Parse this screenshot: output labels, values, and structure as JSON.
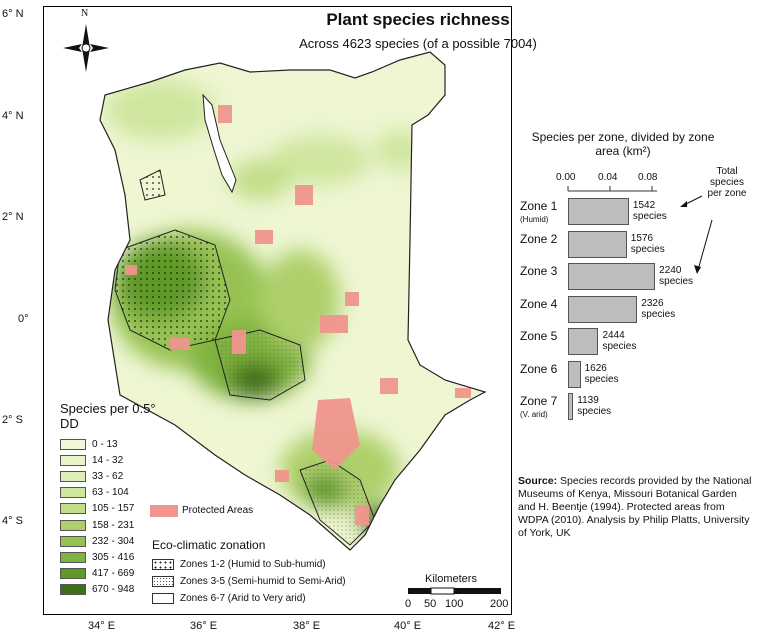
{
  "title": "Plant species richness",
  "subtitle": "Across 4623 species (of a possible 7004)",
  "compass_label": "N",
  "lat_labels": [
    "6° N",
    "4° N",
    "2° N",
    "0°",
    "2° S",
    "4° S"
  ],
  "lon_labels": [
    "34° E",
    "36° E",
    "38° E",
    "40° E",
    "42° E"
  ],
  "legend": {
    "title": "Species per 0.5° DD",
    "items": [
      {
        "label": "0 - 13",
        "color": "#f1f8d8"
      },
      {
        "label": "14 - 32",
        "color": "#e8f3c8"
      },
      {
        "label": "33 - 62",
        "color": "#ddeeb6"
      },
      {
        "label": "63 - 104",
        "color": "#cfe69f"
      },
      {
        "label": "105 - 157",
        "color": "#c1dd88"
      },
      {
        "label": "158 - 231",
        "color": "#aed06c"
      },
      {
        "label": "232 - 304",
        "color": "#97c253"
      },
      {
        "label": "305 - 416",
        "color": "#7fb23e"
      },
      {
        "label": "417 - 669",
        "color": "#5f9a26"
      },
      {
        "label": "670 - 948",
        "color": "#3d6f18"
      }
    ]
  },
  "protected_areas_label": "Protected Areas",
  "protected_color": "#f0958d",
  "eco": {
    "title": "Eco-climatic zonation",
    "items": [
      {
        "label": "Zones 1-2 (Humid to Sub-humid)",
        "pattern": "dots"
      },
      {
        "label": "Zones 3-5 (Semi-humid to Semi-Arid)",
        "pattern": "fine-dots"
      },
      {
        "label": "Zones 6-7 (Arid to Very arid)",
        "pattern": "none"
      }
    ]
  },
  "zone_chart": {
    "title": "Species per zone, divided by zone area (km²)",
    "ticks": [
      "0.00",
      "0.04",
      "0.08"
    ],
    "note": "Total species per zone"
  },
  "chart_data": {
    "type": "bar",
    "orientation": "horizontal",
    "title": "Species per zone, divided by zone area (km²)",
    "categories": [
      "Zone 1",
      "Zone 2",
      "Zone 3",
      "Zone 4",
      "Zone 5",
      "Zone 6",
      "Zone 7"
    ],
    "category_notes": [
      "(Humid)",
      "",
      "",
      "",
      "",
      "",
      "(V. arid)"
    ],
    "values": [
      0.058,
      0.056,
      0.083,
      0.066,
      0.029,
      0.012,
      0.005
    ],
    "annotations": [
      "1542 species",
      "1576 species",
      "2240 species",
      "2326 species",
      "2444 species",
      "1626 species",
      "1139 species"
    ],
    "xlim": [
      0,
      0.085
    ],
    "xticks": [
      0.0,
      0.04,
      0.08
    ],
    "bar_color": "#bdbdbd"
  },
  "source_label": "Source:",
  "source_text": "Species records provided by the National Museums of Kenya, Missouri Botanical Garden and H. Beentje (1994). Protected areas from WDPA (2010). Analysis by Philip Platts, University of York, UK",
  "scale": {
    "title": "Kilometers",
    "labels": [
      "0",
      "50",
      "100",
      "200"
    ]
  }
}
